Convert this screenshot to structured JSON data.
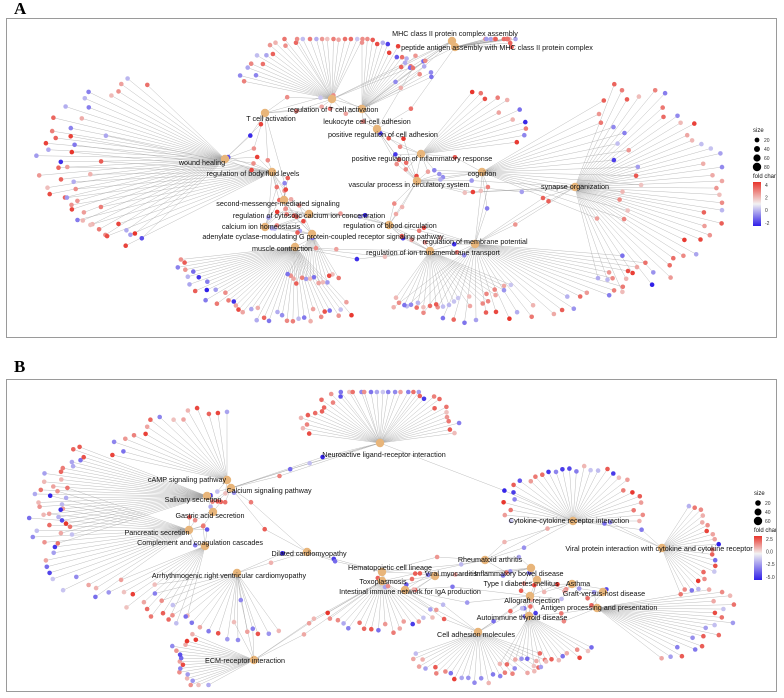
{
  "panels": [
    {
      "letter": "A",
      "categories": [
        "MHC class II protein complex assembly",
        "peptide antigen assembly with MHC class II protein complex",
        "regulation of T cell activation",
        "leukocyte cell-cell adhesion",
        "T cell activation",
        "positive regulation of cell adhesion",
        "wound healing",
        "positive regulation of inflammatory response",
        "regulation of body fluid levels",
        "cognition",
        "vascular process in circulatory system",
        "synapse organization",
        "second-messenger-mediated signaling",
        "regulation of cytosolic calcium ion concentration",
        "calcium ion homeostasis",
        "regulation of blood circulation",
        "adenylate cyclase-modulating G protein-coupled receptor signaling pathway",
        "muscle contraction",
        "regulation of membrane potential",
        "regulation of ion transmembrane transport"
      ],
      "legend": {
        "size_title": "size",
        "size_values": [
          "20",
          "40",
          "60",
          "80"
        ],
        "color_title": "fold change",
        "color_ticks": [
          "4",
          "2",
          "0",
          "-2"
        ]
      }
    },
    {
      "letter": "B",
      "categories": [
        "Neuroactive ligand-receptor interaction",
        "cAMP signaling pathway",
        "Calcium signaling pathway",
        "Salivary secretion",
        "Gastric acid secretion",
        "Pancreatic secretion",
        "Complement and coagulation cascades",
        "Dilated cardiomyopathy",
        "Arrhythmogenic right ventricular cardiomyopathy",
        "Hematopoietic cell lineage",
        "Toxoplasmosis",
        "Viral myocarditis",
        "Intestinal immune network for IgA production",
        "Cytokine-cytokine receptor interaction",
        "Viral protein interaction with cytokine and cytokine receptor",
        "Rheumatoid arthritis",
        "Inflammatory bowel disease",
        "Type I diabetes mellitus",
        "Asthma",
        "Graft-versus-host disease",
        "Allograft rejection",
        "Antigen processing and presentation",
        "Autoimmune thyroid disease",
        "Cell adhesion molecules",
        "ECM-receptor interaction"
      ],
      "legend": {
        "size_title": "size",
        "size_values": [
          "20",
          "40",
          "60"
        ],
        "color_title": "fold change",
        "color_ticks": [
          "2.5",
          "0.0",
          "-2.5",
          "-5.0"
        ]
      }
    }
  ],
  "colors": {
    "category_node": "#e8b57a",
    "edge": "#9c9c9c",
    "gene_high": "#e8342b",
    "gene_mid": "#f2f2f2",
    "gene_low": "#2f1ee8"
  }
}
